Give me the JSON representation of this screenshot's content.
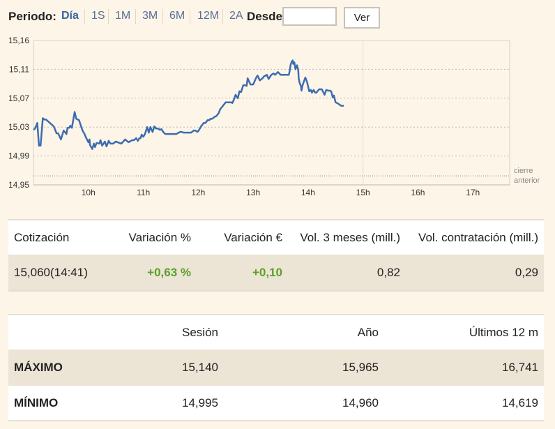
{
  "period": {
    "label": "Periodo:",
    "options": [
      "Día",
      "1S",
      "1M",
      "3M",
      "6M",
      "12M",
      "2A"
    ],
    "active": "Día",
    "desde_label": "Desde",
    "desde_value": "",
    "button": "Ver"
  },
  "colors": {
    "line": "#3d6cb0",
    "positive": "#5aa02c",
    "background": "#fdf5e7",
    "row_shade": "#ece4d5"
  },
  "chart_data": {
    "type": "line",
    "y_ticks": [
      "15,16",
      "15,11",
      "15,07",
      "15,03",
      "14,99",
      "14,95"
    ],
    "ylim": [
      14.95,
      15.16
    ],
    "x_ticks": [
      "10h",
      "11h",
      "12h",
      "13h",
      "14h",
      "15h",
      "16h",
      "17h"
    ],
    "xlim": [
      9.0,
      17.67
    ],
    "grid": true,
    "reference_line": {
      "value": 14.963,
      "label_line1": "cierre",
      "label_line2": "anterior"
    },
    "series": [
      {
        "x": [
          9.0,
          9.03,
          9.07,
          9.1,
          9.13,
          9.17,
          9.2,
          9.23,
          9.3,
          9.37,
          9.42,
          9.45,
          9.5,
          9.55,
          9.6,
          9.62,
          9.65,
          9.67,
          9.7,
          9.73,
          9.75,
          9.78,
          9.83,
          9.88,
          9.9,
          9.93,
          9.95,
          10.0,
          10.02,
          10.03,
          10.07,
          10.1,
          10.12,
          10.15,
          10.2,
          10.22,
          10.25,
          10.3,
          10.33,
          10.37,
          10.4,
          10.45,
          10.5,
          10.6,
          10.67,
          10.73,
          10.8,
          10.83,
          10.87,
          10.9,
          10.93,
          10.95,
          10.97,
          11.0,
          11.03,
          11.07,
          11.1,
          11.13,
          11.17,
          11.2,
          11.23,
          11.27,
          11.3,
          11.33,
          11.37,
          11.4,
          11.5,
          11.6,
          11.67,
          11.7,
          11.73,
          11.8,
          11.87,
          11.92,
          11.95,
          11.98,
          12.0,
          12.03,
          12.05,
          12.1,
          12.13,
          12.17,
          12.2,
          12.22,
          12.25,
          12.3,
          12.33,
          12.37,
          12.4,
          12.45,
          12.5,
          12.55,
          12.6,
          12.62,
          12.65,
          12.68,
          12.72,
          12.75,
          12.78,
          12.82,
          12.85,
          12.88,
          12.9,
          12.95,
          13.0,
          13.05,
          13.08,
          13.12,
          13.17,
          13.2,
          13.25,
          13.28,
          13.33,
          13.37,
          13.4,
          13.45,
          13.5,
          13.6,
          13.65,
          13.67,
          13.68,
          13.7,
          13.72,
          13.73,
          13.75,
          13.77,
          13.8,
          13.82,
          13.83,
          13.85,
          13.87,
          13.88,
          13.9,
          13.95,
          13.98,
          14.02,
          14.05,
          14.07,
          14.1,
          14.13,
          14.15,
          14.2,
          14.25,
          14.3,
          14.33,
          14.37,
          14.4,
          14.42,
          14.45,
          14.47,
          14.5,
          14.55,
          14.6,
          14.65
        ],
        "y": [
          15.03,
          15.032,
          15.04,
          15.007,
          15.007,
          15.047,
          15.045,
          15.045,
          15.04,
          15.035,
          15.025,
          15.025,
          15.016,
          15.029,
          15.024,
          15.033,
          15.033,
          15.036,
          15.033,
          15.047,
          15.056,
          15.046,
          15.044,
          15.032,
          15.028,
          15.024,
          15.02,
          15.012,
          15.016,
          15.008,
          15.002,
          15.01,
          15.005,
          15.011,
          15.01,
          15.015,
          15.007,
          15.013,
          15.006,
          15.014,
          15.01,
          15.01,
          15.013,
          15.01,
          15.016,
          15.012,
          15.015,
          15.015,
          15.018,
          15.014,
          15.018,
          15.018,
          15.023,
          15.02,
          15.024,
          15.034,
          15.026,
          15.034,
          15.027,
          15.035,
          15.032,
          15.032,
          15.03,
          15.031,
          15.026,
          15.024,
          15.024,
          15.024,
          15.027,
          15.027,
          15.026,
          15.026,
          15.026,
          15.029,
          15.029,
          15.027,
          15.028,
          15.032,
          15.035,
          15.04,
          15.04,
          15.044,
          15.044,
          15.046,
          15.046,
          15.049,
          15.05,
          15.054,
          15.06,
          15.065,
          15.07,
          15.07,
          15.07,
          15.069,
          15.074,
          15.081,
          15.076,
          15.086,
          15.085,
          15.095,
          15.095,
          15.094,
          15.105,
          15.096,
          15.096,
          15.105,
          15.109,
          15.102,
          15.105,
          15.108,
          15.11,
          15.104,
          15.11,
          15.112,
          15.11,
          15.114,
          15.11,
          15.11,
          15.11,
          15.118,
          15.124,
          15.129,
          15.131,
          15.126,
          15.128,
          15.118,
          15.124,
          15.117,
          15.104,
          15.097,
          15.094,
          15.087,
          15.095,
          15.106,
          15.1,
          15.086,
          15.088,
          15.084,
          15.088,
          15.084,
          15.084,
          15.089,
          15.089,
          15.081,
          15.088,
          15.087,
          15.087,
          15.086,
          15.077,
          15.08,
          15.07,
          15.068,
          15.065,
          15.065
        ]
      }
    ]
  },
  "quote_table": {
    "headers": [
      "Cotización",
      "Variación %",
      "Variación €",
      "Vol. 3 meses (mill.)",
      "Vol. contratación (mill.)"
    ],
    "row": [
      "15,060(14:41)",
      "+0,63 %",
      "+0,10",
      "0,82",
      "0,29"
    ]
  },
  "range_table": {
    "headers": [
      "",
      "Sesión",
      "Año",
      "Últimos 12 m"
    ],
    "rows": [
      [
        "MÁXIMO",
        "15,140",
        "15,965",
        "16,741"
      ],
      [
        "MÍNIMO",
        "14,995",
        "14,960",
        "14,619"
      ]
    ]
  }
}
